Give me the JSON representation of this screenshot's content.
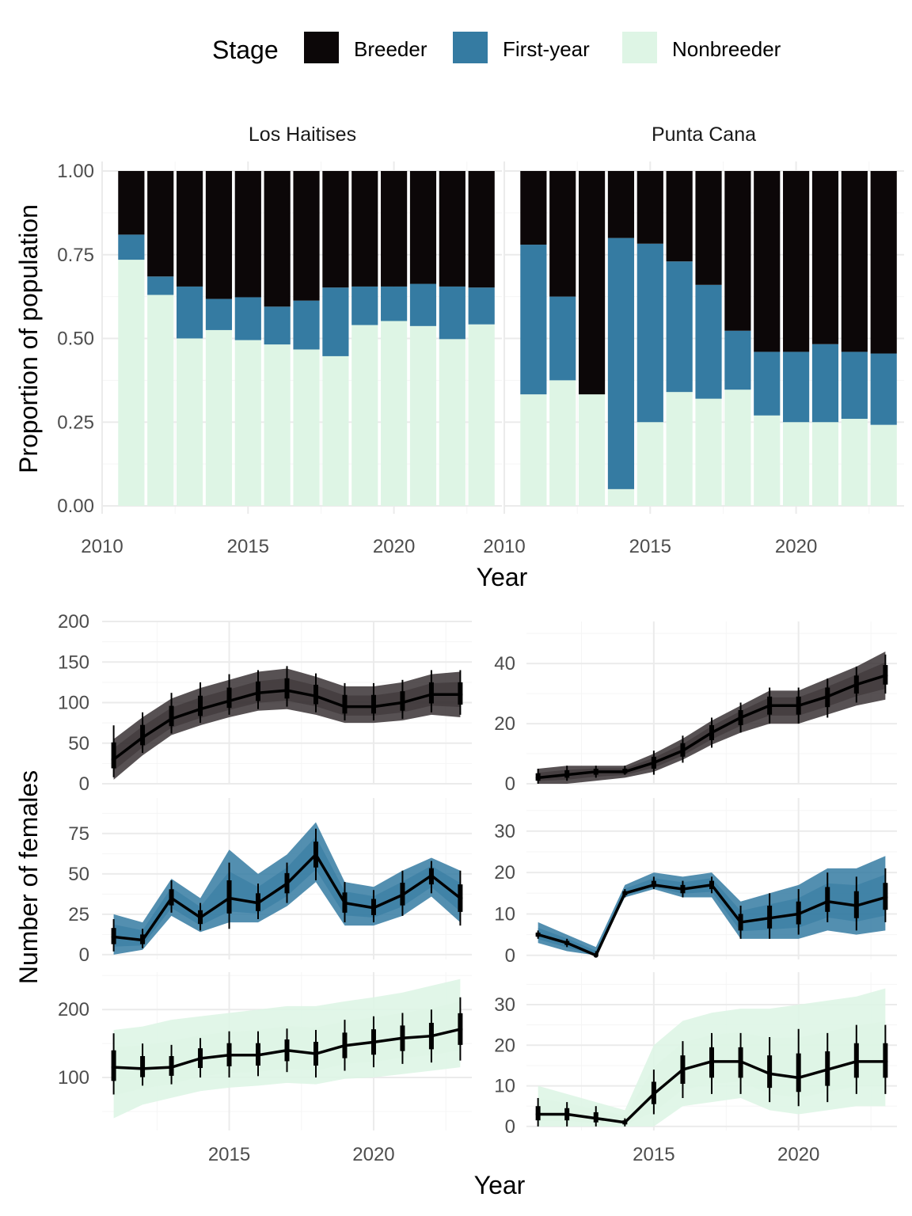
{
  "chart_data": [
    {
      "type": "bar",
      "stacked": true,
      "legend": {
        "title": "Stage",
        "position": "top",
        "entries": [
          {
            "label": "Breeder",
            "color": "#0c0708"
          },
          {
            "label": "First-year",
            "color": "#357ba2"
          },
          {
            "label": "Nonbreeder",
            "color": "#def5e5"
          }
        ]
      },
      "xlabel": "Year",
      "ylabel": "Proportion of population",
      "xlim": [
        2010,
        2023.7
      ],
      "xticks": [
        "2010",
        "2015",
        "2020"
      ],
      "ylim": [
        0,
        1
      ],
      "yticks": [
        "0.00",
        "0.25",
        "0.50",
        "0.75",
        "1.00"
      ],
      "grid": true,
      "x": [
        2011,
        2012,
        2013,
        2014,
        2015,
        2016,
        2017,
        2018,
        2019,
        2020,
        2021,
        2022,
        2023
      ],
      "panels": [
        {
          "label": "Los Haitises",
          "series": [
            {
              "name": "Nonbreeder",
              "values": [
                0.735,
                0.63,
                0.5,
                0.525,
                0.495,
                0.482,
                0.467,
                0.447,
                0.54,
                0.552,
                0.537,
                0.498,
                0.542
              ]
            },
            {
              "name": "First-year",
              "values": [
                0.075,
                0.055,
                0.155,
                0.093,
                0.128,
                0.113,
                0.146,
                0.205,
                0.115,
                0.103,
                0.126,
                0.157,
                0.11
              ]
            },
            {
              "name": "Breeder",
              "values": [
                0.19,
                0.315,
                0.345,
                0.382,
                0.377,
                0.405,
                0.387,
                0.348,
                0.345,
                0.345,
                0.337,
                0.345,
                0.348
              ]
            }
          ]
        },
        {
          "label": "Punta Cana",
          "series": [
            {
              "name": "Nonbreeder",
              "values": [
                0.333,
                0.375,
                0.333,
                0.05,
                0.25,
                0.34,
                0.32,
                0.347,
                0.27,
                0.25,
                0.25,
                0.26,
                0.242
              ]
            },
            {
              "name": "First-year",
              "values": [
                0.447,
                0.25,
                0.0,
                0.75,
                0.533,
                0.39,
                0.34,
                0.176,
                0.19,
                0.21,
                0.233,
                0.2,
                0.213
              ]
            },
            {
              "name": "Breeder",
              "values": [
                0.22,
                0.375,
                0.667,
                0.2,
                0.217,
                0.27,
                0.34,
                0.477,
                0.54,
                0.54,
                0.517,
                0.54,
                0.545
              ]
            }
          ]
        }
      ]
    },
    {
      "type": "line",
      "xlabel": "Year",
      "ylabel": "Number of females",
      "grid": true,
      "x": [
        2011,
        2012,
        2013,
        2014,
        2015,
        2016,
        2017,
        2018,
        2019,
        2020,
        2021,
        2022,
        2023
      ],
      "xlim": [
        2010.6,
        2023.4
      ],
      "xticks": [
        "2015",
        "2020"
      ],
      "note_bands": "posterior trajectory envelope shown as shaded band; vertical bars are credible intervals",
      "panels": [
        {
          "site": "Los Haitises",
          "stage": "Breeder",
          "color": "#3a3335",
          "ylim": [
            0,
            200
          ],
          "yticks": [
            "0",
            "50",
            "100",
            "150",
            "200"
          ],
          "median": [
            30,
            57,
            80,
            92,
            102,
            112,
            115,
            108,
            95,
            95,
            100,
            110,
            110
          ],
          "band_low": [
            5,
            35,
            60,
            72,
            82,
            90,
            92,
            85,
            75,
            75,
            78,
            85,
            82
          ],
          "band_high": [
            55,
            82,
            105,
            118,
            128,
            138,
            142,
            132,
            120,
            120,
            125,
            135,
            138
          ],
          "ci_low": [
            8,
            38,
            62,
            75,
            85,
            92,
            95,
            88,
            78,
            78,
            80,
            88,
            85
          ],
          "ci_high": [
            72,
            88,
            112,
            125,
            135,
            140,
            145,
            136,
            124,
            124,
            128,
            140,
            140
          ]
        },
        {
          "site": "Punta Cana",
          "stage": "Breeder",
          "color": "#3a3335",
          "ylim": [
            0,
            54
          ],
          "yticks": [
            "0",
            "20",
            "40"
          ],
          "median": [
            2,
            3,
            4,
            4,
            7,
            11,
            17,
            22,
            26,
            26,
            29,
            33,
            36
          ],
          "band_low": [
            0,
            0,
            1,
            2,
            4,
            8,
            13,
            17,
            20,
            20,
            23,
            26,
            28
          ],
          "band_high": [
            5,
            6,
            6,
            6,
            10,
            15,
            21,
            26,
            31,
            31,
            35,
            39,
            44
          ],
          "ci_low": [
            0,
            1,
            2,
            3,
            3,
            7,
            12,
            17,
            20,
            20,
            22,
            27,
            30
          ],
          "ci_high": [
            5,
            6,
            6,
            6,
            11,
            16,
            22,
            27,
            32,
            32,
            35,
            39,
            43
          ]
        },
        {
          "site": "Los Haitises",
          "stage": "First-year",
          "color": "#357ba2",
          "ylim": [
            -3,
            97
          ],
          "yticks": [
            "0",
            "25",
            "50",
            "75"
          ],
          "median": [
            11,
            9,
            35,
            23,
            35,
            32,
            44,
            62,
            32,
            29,
            37,
            49,
            35
          ],
          "band_low": [
            0,
            3,
            24,
            14,
            20,
            20,
            30,
            45,
            18,
            18,
            24,
            36,
            20
          ],
          "band_high": [
            25,
            20,
            47,
            35,
            65,
            50,
            62,
            82,
            45,
            42,
            52,
            60,
            52
          ],
          "ci_low": [
            2,
            4,
            26,
            15,
            16,
            22,
            32,
            46,
            20,
            20,
            24,
            38,
            18
          ],
          "ci_high": [
            22,
            16,
            46,
            32,
            57,
            44,
            57,
            78,
            45,
            40,
            52,
            58,
            52
          ]
        },
        {
          "site": "Punta Cana",
          "stage": "First-year",
          "color": "#357ba2",
          "ylim": [
            -1,
            38
          ],
          "yticks": [
            "0",
            "10",
            "20",
            "30"
          ],
          "median": [
            5,
            3,
            0,
            15,
            17,
            16,
            17,
            8,
            9,
            10,
            13,
            12,
            14
          ],
          "band_low": [
            3,
            1,
            0,
            14,
            16,
            14,
            14,
            4,
            4,
            4,
            6,
            5,
            6
          ],
          "band_high": [
            8,
            5,
            2,
            17,
            20,
            19,
            20,
            13,
            15,
            17,
            21,
            21,
            24
          ],
          "ci_low": [
            4,
            2,
            0,
            14,
            16,
            14,
            15,
            4,
            4,
            5,
            8,
            6,
            8
          ],
          "ci_high": [
            6,
            4,
            1,
            16,
            19,
            18,
            19,
            12,
            15,
            16,
            20,
            19,
            21
          ]
        },
        {
          "site": "Los Haitises",
          "stage": "Nonbreeder",
          "color": "#def5e5",
          "ylim": [
            22,
            255
          ],
          "yticks": [
            "100",
            "200"
          ],
          "median": [
            115,
            113,
            115,
            128,
            133,
            133,
            140,
            135,
            147,
            152,
            158,
            161,
            171
          ],
          "band_low": [
            40,
            60,
            70,
            80,
            85,
            88,
            92,
            90,
            98,
            100,
            105,
            110,
            115
          ],
          "band_high": [
            170,
            175,
            185,
            190,
            195,
            200,
            205,
            205,
            212,
            218,
            225,
            235,
            245
          ],
          "ci_low": [
            75,
            88,
            90,
            100,
            100,
            102,
            108,
            100,
            110,
            115,
            120,
            122,
            125
          ],
          "ci_high": [
            165,
            150,
            148,
            158,
            168,
            168,
            172,
            170,
            185,
            190,
            195,
            200,
            218
          ]
        },
        {
          "site": "Punta Cana",
          "stage": "Nonbreeder",
          "color": "#def5e5",
          "ylim": [
            -1,
            38
          ],
          "yticks": [
            "0",
            "10",
            "20",
            "30"
          ],
          "median": [
            3,
            3,
            2,
            1,
            8,
            14,
            16,
            16,
            13,
            12,
            14,
            16,
            16
          ],
          "band_low": [
            0,
            0,
            0,
            0,
            0,
            5,
            6,
            7,
            4,
            3,
            4,
            5,
            5
          ],
          "band_high": [
            10,
            8,
            6,
            4,
            20,
            26,
            28,
            29,
            29,
            30,
            31,
            32,
            34
          ],
          "ci_low": [
            0,
            0,
            0,
            0,
            3,
            7,
            8,
            8,
            6,
            5,
            6,
            8,
            8
          ],
          "ci_high": [
            7,
            6,
            5,
            2,
            14,
            21,
            23,
            23,
            22,
            24,
            23,
            25,
            25
          ]
        }
      ]
    }
  ]
}
